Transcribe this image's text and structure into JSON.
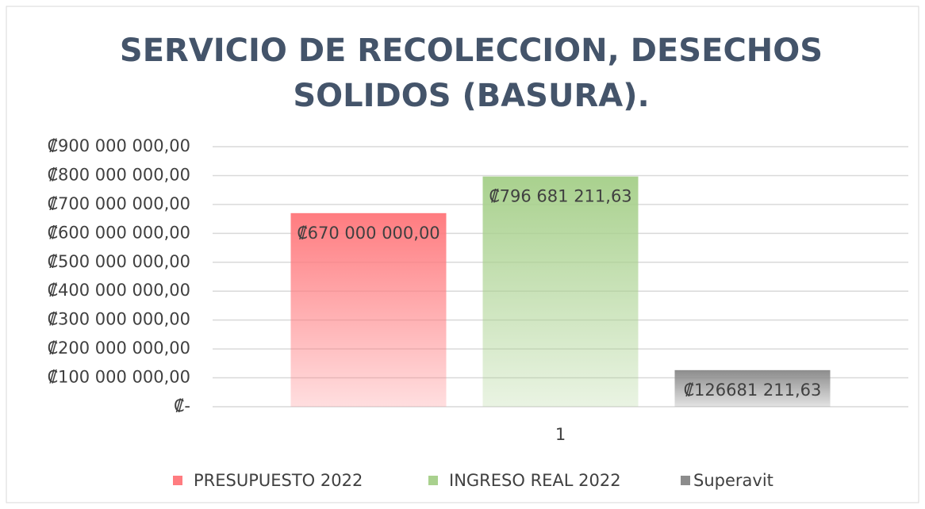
{
  "chart_data": {
    "type": "bar",
    "title": [
      "SERVICIO DE RECOLECCION, DESECHOS",
      "SOLIDOS (BASURA)."
    ],
    "categories": [
      "1"
    ],
    "series": [
      {
        "name": "PRESUPUESTO 2022",
        "color": "#ff7c80",
        "values": [
          670000000.0
        ],
        "value_labels": [
          "₡670 000 000,00"
        ]
      },
      {
        "name": "INGRESO REAL 2022",
        "color": "#a9d18e",
        "values": [
          796681211.63
        ],
        "value_labels": [
          "₡796 681 211,63"
        ]
      },
      {
        "name": "Superavit",
        "color": "#8c8c8c",
        "values": [
          126681211.63
        ],
        "value_labels": [
          "₡126681 211,63"
        ]
      }
    ],
    "ylim": [
      0,
      900000000
    ],
    "yticks": [
      {
        "value": 0,
        "label": "₡-"
      },
      {
        "value": 100000000,
        "label": "₡100 000 000,00"
      },
      {
        "value": 200000000,
        "label": "₡200 000 000,00"
      },
      {
        "value": 300000000,
        "label": "₡300 000 000,00"
      },
      {
        "value": 400000000,
        "label": "₡400 000 000,00"
      },
      {
        "value": 500000000,
        "label": "₡500 000 000,00"
      },
      {
        "value": 600000000,
        "label": "₡600 000 000,00"
      },
      {
        "value": 700000000,
        "label": "₡700 000 000,00"
      },
      {
        "value": 800000000,
        "label": "₡800 000 000,00"
      },
      {
        "value": 900000000,
        "label": "₡900 000 000,00"
      }
    ],
    "grid": true,
    "legend": "bottom"
  }
}
